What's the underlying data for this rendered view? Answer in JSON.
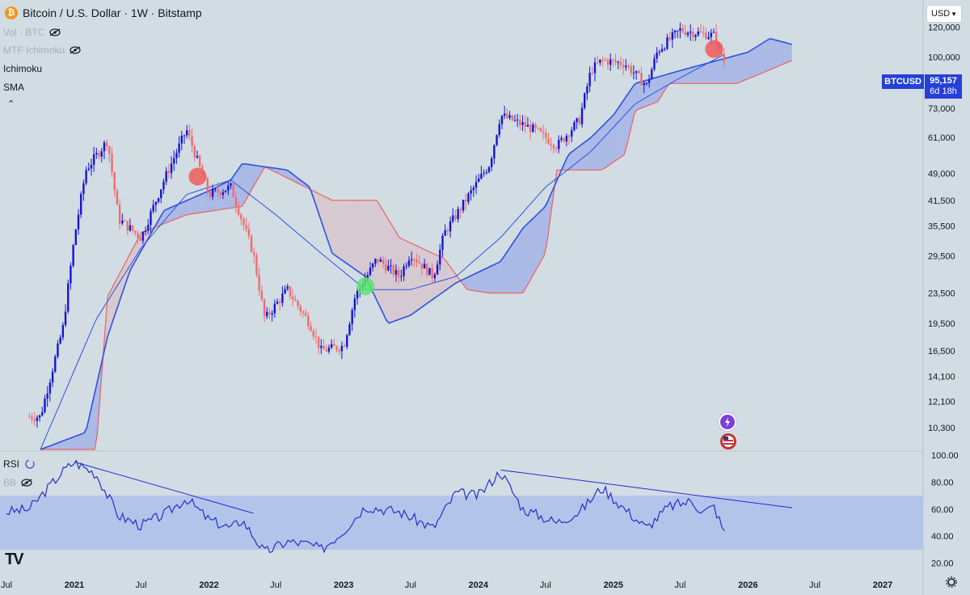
{
  "header": {
    "title": "Bitcoin / U.S. Dollar · 1W · Bitstamp",
    "currency": "USD",
    "indicators": [
      "Vol · BTC",
      "MTF Ichimoku",
      "Ichimoku",
      "SMA"
    ],
    "rsi_legend": [
      "RSI",
      "BB"
    ]
  },
  "price_tag": {
    "symbol": "BTCUSD",
    "price": "95,157",
    "countdown": "6d 18h"
  },
  "colors": {
    "background": "#d2dce3",
    "bull_candle": "#1515d6",
    "bear_candle": "#f06d6d",
    "sma": "#2e52e0",
    "cloud_bull": "#aab9e6",
    "cloud_bear": "#d6c9d1",
    "span_b": "#ef5f5f",
    "rsi_line": "#2230cc",
    "rsi_band": "#b3c4ea",
    "sell_marker": "#f15c5c",
    "buy_marker": "#5ce66f"
  },
  "chart_data": [
    {
      "type": "candlestick",
      "title": "Bitcoin / U.S. Dollar · 1W · Bitstamp",
      "scale": "log",
      "y_ticks": [
        "120,000",
        "100,000",
        "73,000",
        "61,000",
        "49,000",
        "41,500",
        "35,500",
        "29,500",
        "23,500",
        "19,500",
        "16,500",
        "14,100",
        "12,100",
        "10,300"
      ],
      "y_tick_values": [
        120000,
        100000,
        73000,
        61000,
        49000,
        41500,
        35500,
        29500,
        23500,
        19500,
        16500,
        14100,
        12100,
        10300
      ],
      "ylim": [
        9000,
        135000
      ],
      "x_ticks": [
        "Jul",
        "2021",
        "Jul",
        "2022",
        "Jul",
        "2023",
        "Jul",
        "2024",
        "Jul",
        "2025",
        "Jul",
        "2026",
        "Jul",
        "2027"
      ],
      "x_tick_dates": [
        "2020-07",
        "2021-01",
        "2021-07",
        "2022-01",
        "2022-07",
        "2023-01",
        "2023-07",
        "2024-01",
        "2024-07",
        "2025-01",
        "2025-07",
        "2026-01",
        "2026-07",
        "2027-01"
      ],
      "price_anchors": [
        [
          "2020-10",
          11000
        ],
        [
          "2020-12",
          19000
        ],
        [
          "2021-01",
          33000
        ],
        [
          "2021-02",
          50000
        ],
        [
          "2021-04",
          60000
        ],
        [
          "2021-05",
          37000
        ],
        [
          "2021-07",
          33000
        ],
        [
          "2021-09",
          47000
        ],
        [
          "2021-11",
          64000
        ],
        [
          "2022-01",
          43000
        ],
        [
          "2022-03",
          45000
        ],
        [
          "2022-05",
          30000
        ],
        [
          "2022-06",
          20000
        ],
        [
          "2022-08",
          24000
        ],
        [
          "2022-10",
          19500
        ],
        [
          "2022-11",
          16500
        ],
        [
          "2023-01",
          17000
        ],
        [
          "2023-02",
          23000
        ],
        [
          "2023-04",
          29000
        ],
        [
          "2023-06",
          26000
        ],
        [
          "2023-07",
          30000
        ],
        [
          "2023-09",
          26000
        ],
        [
          "2023-10",
          34000
        ],
        [
          "2023-12",
          42000
        ],
        [
          "2024-02",
          52000
        ],
        [
          "2024-03",
          70000
        ],
        [
          "2024-06",
          64000
        ],
        [
          "2024-08",
          58000
        ],
        [
          "2024-10",
          68000
        ],
        [
          "2024-11",
          92000
        ],
        [
          "2024-12",
          98000
        ],
        [
          "2025-02",
          96000
        ],
        [
          "2025-04",
          84000
        ],
        [
          "2025-05",
          104000
        ],
        [
          "2025-07",
          118000
        ],
        [
          "2025-10",
          114000
        ],
        [
          "2025-11",
          95157
        ]
      ],
      "sma_anchors": [
        [
          "2020-10",
          9000
        ],
        [
          "2021-03",
          20000
        ],
        [
          "2021-07",
          31000
        ],
        [
          "2021-11",
          43000
        ],
        [
          "2022-03",
          47000
        ],
        [
          "2022-07",
          38000
        ],
        [
          "2022-11",
          30000
        ],
        [
          "2023-03",
          24000
        ],
        [
          "2023-07",
          24000
        ],
        [
          "2023-11",
          26000
        ],
        [
          "2024-03",
          33000
        ],
        [
          "2024-07",
          45000
        ],
        [
          "2024-11",
          56000
        ],
        [
          "2025-03",
          75000
        ],
        [
          "2025-07",
          88000
        ],
        [
          "2025-11",
          102000
        ]
      ],
      "cloud_top_anchors": [
        [
          "2020-10",
          9000
        ],
        [
          "2021-02",
          10000
        ],
        [
          "2021-04",
          18000
        ],
        [
          "2021-06",
          27000
        ],
        [
          "2021-09",
          39000
        ],
        [
          "2022-01",
          44000
        ],
        [
          "2022-03",
          47000
        ],
        [
          "2022-04",
          52000
        ],
        [
          "2022-08",
          50000
        ],
        [
          "2022-10",
          45000
        ],
        [
          "2022-12",
          30000
        ],
        [
          "2023-03",
          26000
        ],
        [
          "2023-05",
          19500
        ],
        [
          "2023-07",
          20500
        ],
        [
          "2023-11",
          25000
        ],
        [
          "2024-03",
          28500
        ],
        [
          "2024-05",
          35000
        ],
        [
          "2024-07",
          40000
        ],
        [
          "2024-09",
          55000
        ],
        [
          "2024-11",
          61000
        ],
        [
          "2025-01",
          70000
        ],
        [
          "2025-03",
          85000
        ],
        [
          "2025-07",
          92000
        ],
        [
          "2026-01",
          103000
        ],
        [
          "2026-03",
          112000
        ],
        [
          "2026-05",
          108000
        ]
      ],
      "span_b_anchors": [
        [
          "2020-10",
          9000
        ],
        [
          "2021-03",
          9000
        ],
        [
          "2021-04",
          23000
        ],
        [
          "2021-07",
          34000
        ],
        [
          "2021-11",
          38000
        ],
        [
          "2022-04",
          40000
        ],
        [
          "2022-06",
          51000
        ],
        [
          "2022-12",
          41500
        ],
        [
          "2023-04",
          41500
        ],
        [
          "2023-06",
          33000
        ],
        [
          "2023-10",
          29000
        ],
        [
          "2023-12",
          24000
        ],
        [
          "2024-02",
          23500
        ],
        [
          "2024-05",
          23500
        ],
        [
          "2024-07",
          30000
        ],
        [
          "2024-08",
          50000
        ],
        [
          "2024-12",
          50000
        ],
        [
          "2025-02",
          55000
        ],
        [
          "2025-03",
          72000
        ],
        [
          "2025-05",
          76000
        ],
        [
          "2025-06",
          85000
        ],
        [
          "2025-12",
          85000
        ],
        [
          "2026-02",
          90000
        ],
        [
          "2026-05",
          98000
        ]
      ],
      "signals": [
        {
          "type": "sell",
          "date": "2021-12",
          "price": 48000
        },
        {
          "type": "buy",
          "date": "2023-03",
          "price": 24500
        },
        {
          "type": "sell",
          "date": "2025-10",
          "price": 105000
        }
      ]
    },
    {
      "type": "line",
      "title": "RSI",
      "y_ticks": [
        "100.00",
        "80.00",
        "60.00",
        "40.00",
        "20.00"
      ],
      "y_tick_values": [
        100,
        80,
        60,
        40,
        20
      ],
      "ylim": [
        15,
        100
      ],
      "band": [
        30,
        70
      ],
      "rsi_anchors": [
        [
          "2020-07",
          58
        ],
        [
          "2020-09",
          60
        ],
        [
          "2020-12",
          88
        ],
        [
          "2021-01",
          95
        ],
        [
          "2021-03",
          86
        ],
        [
          "2021-05",
          55
        ],
        [
          "2021-07",
          48
        ],
        [
          "2021-09",
          56
        ],
        [
          "2021-11",
          68
        ],
        [
          "2022-01",
          52
        ],
        [
          "2022-03",
          46
        ],
        [
          "2022-04",
          52
        ],
        [
          "2022-06",
          28
        ],
        [
          "2022-08",
          36
        ],
        [
          "2022-10",
          34
        ],
        [
          "2022-11",
          30
        ],
        [
          "2023-01",
          44
        ],
        [
          "2023-03",
          62
        ],
        [
          "2023-06",
          58
        ],
        [
          "2023-09",
          46
        ],
        [
          "2023-11",
          72
        ],
        [
          "2024-01",
          70
        ],
        [
          "2024-03",
          88
        ],
        [
          "2024-05",
          60
        ],
        [
          "2024-08",
          50
        ],
        [
          "2024-10",
          58
        ],
        [
          "2024-12",
          76
        ],
        [
          "2025-02",
          60
        ],
        [
          "2025-04",
          46
        ],
        [
          "2025-06",
          62
        ],
        [
          "2025-08",
          66
        ],
        [
          "2025-09",
          58
        ],
        [
          "2025-10",
          62
        ],
        [
          "2025-11",
          40
        ]
      ],
      "trendlines": [
        {
          "from": [
            "2021-01",
            95
          ],
          "to": [
            "2022-05",
            57
          ]
        },
        {
          "from": [
            "2024-03",
            89
          ],
          "to": [
            "2026-05",
            61
          ]
        }
      ]
    }
  ]
}
